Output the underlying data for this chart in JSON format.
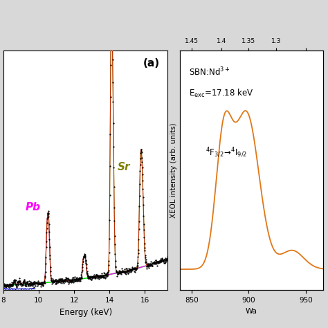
{
  "left_panel": {
    "xlabel": "Energy (keV)",
    "xlim": [
      8,
      17.3
    ],
    "ylim": [
      0,
      1.08
    ],
    "label_a": "(a)",
    "label_pb": "Pb",
    "label_sr": "Sr",
    "pb_color": "#ff00ff",
    "sr_color": "#808000",
    "green_color": "#00dd00",
    "red_color": "#dd0000",
    "blue_color": "#0000bb",
    "dot_color": "#000000",
    "xticks": [
      8,
      10,
      12,
      14,
      16
    ]
  },
  "right_panel": {
    "ylabel": "XEOL intensity (arb. units)",
    "bottom_xlabel": "Wa",
    "xlim": [
      840,
      965
    ],
    "ylim": [
      -0.05,
      1.35
    ],
    "curve_color": "#e07818",
    "top_tick_positions": [
      850,
      876,
      900,
      924,
      950
    ],
    "top_tick_labels": [
      "1.45",
      "1.4",
      "1.35",
      "1.3",
      ""
    ],
    "sbn_text": "SBN:Nd",
    "energy_text": "E",
    "energy_sub": "exc",
    "energy_val": "=17.18 keV"
  },
  "background_color": "#d8d8d8",
  "fig_width": 4.74,
  "fig_height": 4.74,
  "dpi": 100
}
